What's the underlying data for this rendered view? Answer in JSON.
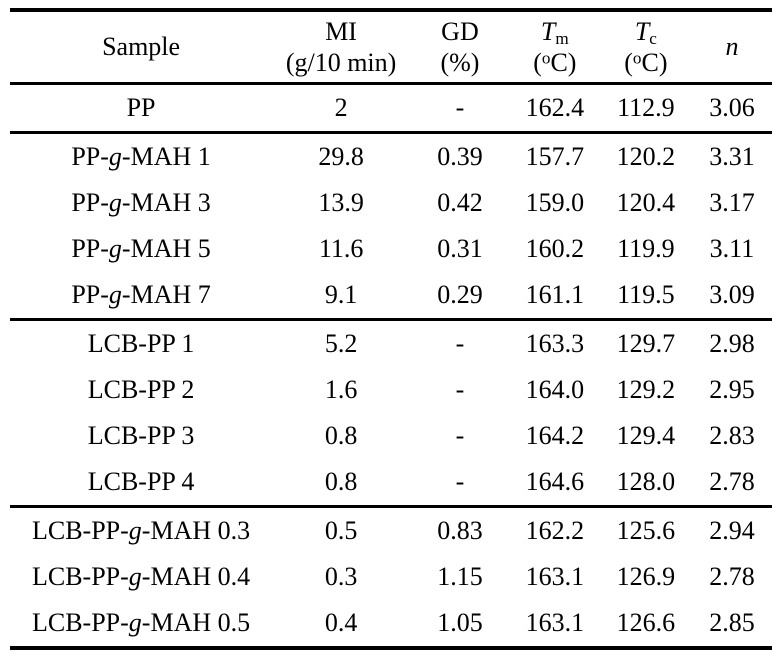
{
  "page": {
    "background_color": "#ffffff",
    "text_color": "#000000",
    "rule_color": "#000000"
  },
  "table": {
    "header": {
      "sample": "Sample",
      "mi_line1": "MI",
      "mi_line2": "(g/10 min)",
      "gd_line1": "GD",
      "gd_line2": "(%)",
      "tm_symbol": "T",
      "tm_subscript": "m",
      "tc_symbol": "T",
      "tc_subscript": "c",
      "unit_open": "(",
      "unit_degree": "o",
      "unit_close": "C)",
      "n_symbol": "n"
    },
    "rows": [
      {
        "sample_pre": "PP",
        "sample_italic": "",
        "sample_post": "",
        "mi": "2",
        "gd": "-",
        "tm": "162.4",
        "tc": "112.9",
        "n": "3.06",
        "group_start": false
      },
      {
        "sample_pre": "PP-",
        "sample_italic": "g",
        "sample_post": "-MAH 1",
        "mi": "29.8",
        "gd": "0.39",
        "tm": "157.7",
        "tc": "120.2",
        "n": "3.31",
        "group_start": true
      },
      {
        "sample_pre": "PP-",
        "sample_italic": "g",
        "sample_post": "-MAH 3",
        "mi": "13.9",
        "gd": "0.42",
        "tm": "159.0",
        "tc": "120.4",
        "n": "3.17",
        "group_start": false
      },
      {
        "sample_pre": "PP-",
        "sample_italic": "g",
        "sample_post": "-MAH 5",
        "mi": "11.6",
        "gd": "0.31",
        "tm": "160.2",
        "tc": "119.9",
        "n": "3.11",
        "group_start": false
      },
      {
        "sample_pre": "PP-",
        "sample_italic": "g",
        "sample_post": "-MAH 7",
        "mi": "9.1",
        "gd": "0.29",
        "tm": "161.1",
        "tc": "119.5",
        "n": "3.09",
        "group_start": false
      },
      {
        "sample_pre": "LCB-PP 1",
        "sample_italic": "",
        "sample_post": "",
        "mi": "5.2",
        "gd": "-",
        "tm": "163.3",
        "tc": "129.7",
        "n": "2.98",
        "group_start": true
      },
      {
        "sample_pre": "LCB-PP 2",
        "sample_italic": "",
        "sample_post": "",
        "mi": "1.6",
        "gd": "-",
        "tm": "164.0",
        "tc": "129.2",
        "n": "2.95",
        "group_start": false
      },
      {
        "sample_pre": "LCB-PP 3",
        "sample_italic": "",
        "sample_post": "",
        "mi": "0.8",
        "gd": "-",
        "tm": "164.2",
        "tc": "129.4",
        "n": "2.83",
        "group_start": false
      },
      {
        "sample_pre": "LCB-PP 4",
        "sample_italic": "",
        "sample_post": "",
        "mi": "0.8",
        "gd": "-",
        "tm": "164.6",
        "tc": "128.0",
        "n": "2.78",
        "group_start": false
      },
      {
        "sample_pre": "LCB-PP-",
        "sample_italic": "g",
        "sample_post": "-MAH 0.3",
        "mi": "0.5",
        "gd": "0.83",
        "tm": "162.2",
        "tc": "125.6",
        "n": "2.94",
        "group_start": true
      },
      {
        "sample_pre": "LCB-PP-",
        "sample_italic": "g",
        "sample_post": "-MAH 0.4",
        "mi": "0.3",
        "gd": "1.15",
        "tm": "163.1",
        "tc": "126.9",
        "n": "2.78",
        "group_start": false
      },
      {
        "sample_pre": "LCB-PP-",
        "sample_italic": "g",
        "sample_post": "-MAH 0.5",
        "mi": "0.4",
        "gd": "1.05",
        "tm": "163.1",
        "tc": "126.6",
        "n": "2.85",
        "group_start": false
      }
    ]
  }
}
